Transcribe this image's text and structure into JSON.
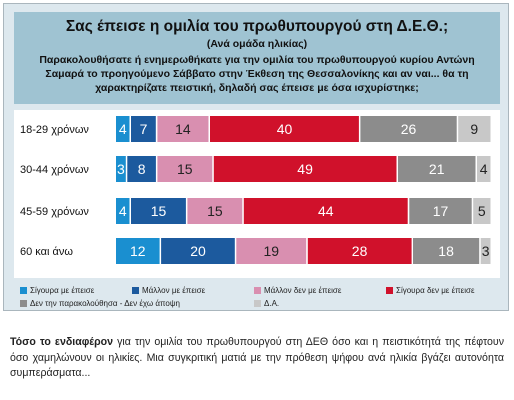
{
  "header": {
    "title": "Σας έπεισε η ομιλία του πρωθυπουργού στη Δ.Ε.Θ.;",
    "subtitle": "(Ανά ομάδα ηλικίας)",
    "question": "Παρακολουθήσατε ή ενημερωθήκατε για την ομιλία του πρωθυπουργού κυρίου Αντώνη Σαμαρά το προηγούμενο Σάββατο στην Έκθεση της Θεσσαλονίκης και αν ναι... θα τη χαρακτηρίζατε πειστική, δηλαδή σας έπεισε με όσα ισχυρίστηκε;"
  },
  "chart_data": {
    "type": "bar",
    "stacked": true,
    "orientation": "horizontal",
    "categories": [
      "18-29 χρόνων",
      "30-44 χρόνων",
      "45-59 χρόνων",
      "60 και άνω"
    ],
    "series": [
      {
        "name": "Σίγουρα με έπεισε",
        "values": [
          4,
          3,
          4,
          12
        ],
        "color": "#1a8fd0"
      },
      {
        "name": "Μάλλον με έπεισε",
        "values": [
          7,
          8,
          15,
          20
        ],
        "color": "#1c5a9e"
      },
      {
        "name": "Μάλλον δεν με έπεισε",
        "values": [
          14,
          15,
          15,
          19
        ],
        "color": "#d98fb0"
      },
      {
        "name": "Σίγουρα δεν με έπεισε",
        "values": [
          40,
          49,
          44,
          28
        ],
        "color": "#d0112b"
      },
      {
        "name": "Δεν την παρακολούθησα - Δεν έχω άποψη",
        "values": [
          26,
          21,
          17,
          18
        ],
        "color": "#8c8c8c"
      },
      {
        "name": "Δ.Α.",
        "values": [
          9,
          4,
          5,
          3
        ],
        "color": "#c8c8c8"
      }
    ]
  },
  "body": {
    "lead": "Τόσο το ενδιαφέρον",
    "text": " για την ομιλία του πρωθυπουργού στη ΔΕΘ όσο και η πειστικότητά της πέφτουν όσο χαμηλώνουν οι ηλικίες. Μια συγκριτική ματιά με την πρόθεση ψήφου ανά ηλικία βγάζει αυτονόητα συμπεράσματα..."
  }
}
